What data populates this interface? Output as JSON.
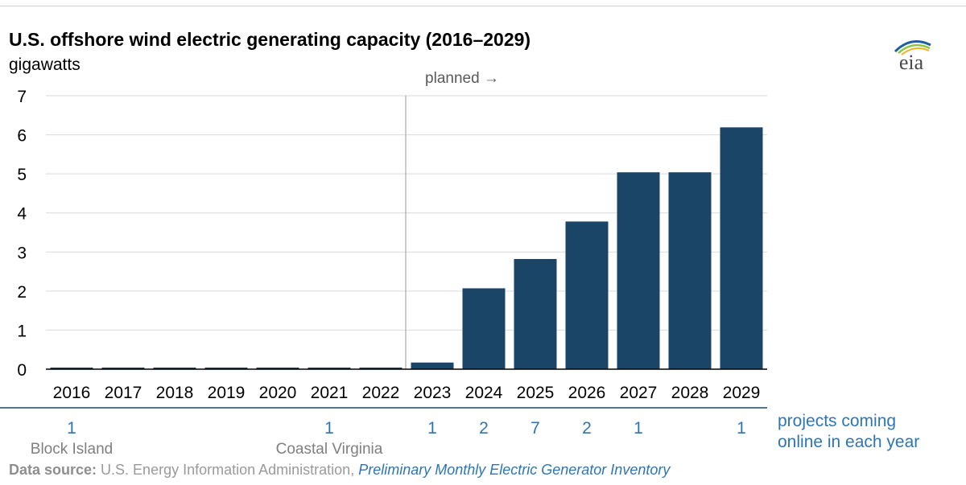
{
  "title": "U.S. offshore wind electric generating capacity (2016–2029)",
  "units": "gigawatts",
  "logo_text": "eia",
  "planned_label": "planned →",
  "chart_data": {
    "type": "bar",
    "title": "U.S. offshore wind electric generating capacity (2016–2029)",
    "ylabel": "gigawatts",
    "xlabel": "",
    "categories": [
      "2016",
      "2017",
      "2018",
      "2019",
      "2020",
      "2021",
      "2022",
      "2023",
      "2024",
      "2025",
      "2026",
      "2027",
      "2028",
      "2029"
    ],
    "values": [
      0.03,
      0.03,
      0.03,
      0.03,
      0.03,
      0.04,
      0.04,
      0.17,
      2.07,
      2.82,
      3.78,
      5.04,
      5.04,
      6.19
    ],
    "ylim": [
      0,
      7
    ],
    "yticks": [
      "0",
      "1",
      "2",
      "3",
      "4",
      "5",
      "6",
      "7"
    ],
    "grid": true,
    "planned_from": "2023",
    "bar_color": "#1b4566",
    "projects": [
      "1",
      "",
      "",
      "",
      "",
      "1",
      "",
      "1",
      "2",
      "7",
      "2",
      "1",
      "",
      "1"
    ],
    "project_names": [
      "Block Island",
      "",
      "",
      "",
      "",
      "Coastal Virginia",
      "",
      "",
      "",
      "",
      "",
      "",
      "",
      ""
    ],
    "projects_label": [
      "projects coming",
      "online in each year"
    ]
  },
  "source": {
    "label": "Data source:",
    "text": " U.S. Energy Information Administration, ",
    "link": "Preliminary Monthly Electric Generator Inventory"
  },
  "colors": {
    "bar": "#1b4566",
    "projects_text": "#2e75b6",
    "source_link": "#2e75b6"
  }
}
